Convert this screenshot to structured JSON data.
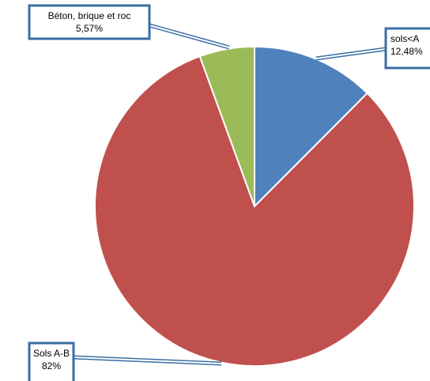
{
  "chart_data": {
    "type": "pie",
    "slices": [
      {
        "label": "sols<A",
        "value": 12.48,
        "value_text": "12,48%",
        "color": "#4F81BD"
      },
      {
        "label": "Sols A-B",
        "value": 82,
        "value_text": "82%",
        "color": "#C0504D"
      },
      {
        "label": "Béton, brique et roc",
        "value": 5.57,
        "value_text": "5,57%",
        "color": "#9BBB59"
      }
    ],
    "legend": "none",
    "label_style": "callout"
  }
}
